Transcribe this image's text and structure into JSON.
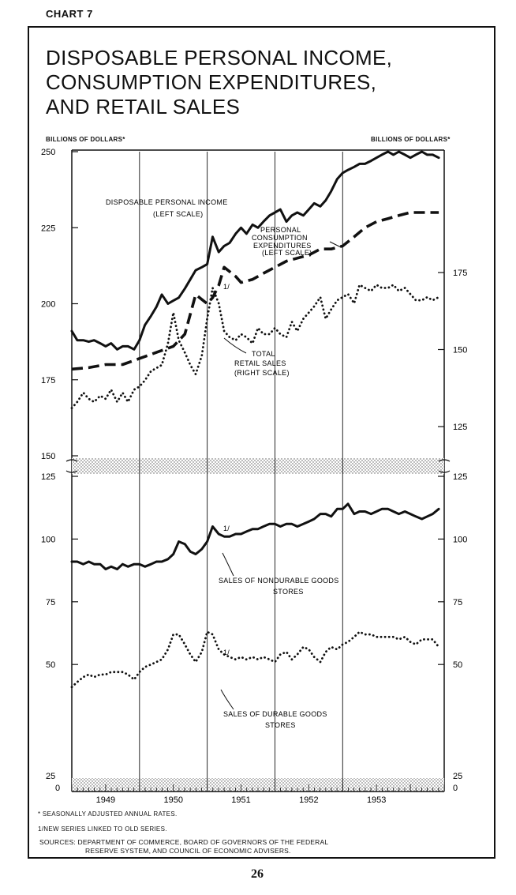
{
  "chart_label": "CHART 7",
  "title_lines": [
    "DISPOSABLE PERSONAL INCOME,",
    "CONSUMPTION EXPENDITURES,",
    "AND RETAIL SALES"
  ],
  "footnotes": {
    "star": "* SEASONALLY ADJUSTED ANNUAL RATES.",
    "one": "1/NEW SERIES LINKED TO OLD SERIES.",
    "sources_line1": "SOURCES: DEPARTMENT OF COMMERCE, BOARD OF GOVERNORS OF THE FEDERAL",
    "sources_line2": "RESERVE SYSTEM, AND COUNCIL OF ECONOMIC ADVISERS."
  },
  "page_number": "26",
  "chart_data": [
    {
      "type": "line",
      "panel": "upper",
      "ylabel_left": "BILLIONS OF DOLLARS*",
      "ylabel_right": "BILLIONS OF DOLLARS*",
      "left_ticks": [
        "150",
        "175",
        "200",
        "225",
        "250"
      ],
      "right_ticks": [
        "125",
        "150",
        "175"
      ],
      "ylim_left": [
        150,
        250
      ],
      "ylim_right": [
        115,
        190
      ],
      "x_range": [
        1948.5,
        1954.0
      ],
      "vertical_lines": [
        1949.5,
        1950.5,
        1951.5,
        1952.5
      ],
      "series": [
        {
          "name": "DISPOSABLE PERSONAL INCOME",
          "label": "DISPOSABLE PERSONAL INCOME",
          "scale_note": "(LEFT SCALE)",
          "style": "solid",
          "axis": "left",
          "x": [
            1948.5,
            1948.58,
            1948.67,
            1948.75,
            1948.83,
            1948.92,
            1949.0,
            1949.08,
            1949.17,
            1949.25,
            1949.33,
            1949.42,
            1949.5,
            1949.58,
            1949.67,
            1949.75,
            1949.83,
            1949.92,
            1950.0,
            1950.08,
            1950.17,
            1950.25,
            1950.33,
            1950.42,
            1950.5,
            1950.58,
            1950.67,
            1950.75,
            1950.83,
            1950.92,
            1951.0,
            1951.08,
            1951.17,
            1951.25,
            1951.33,
            1951.42,
            1951.5,
            1951.58,
            1951.67,
            1951.75,
            1951.83,
            1951.92,
            1952.0,
            1952.08,
            1952.17,
            1952.25,
            1952.33,
            1952.42,
            1952.5,
            1952.58,
            1952.67,
            1952.75,
            1952.83,
            1952.92,
            1953.0,
            1953.08,
            1953.17,
            1953.25,
            1953.33,
            1953.42,
            1953.5,
            1953.58,
            1953.67,
            1953.75,
            1953.83,
            1953.92
          ],
          "values": [
            191,
            188,
            188,
            187.5,
            188,
            187,
            186,
            187,
            185,
            186,
            186,
            185,
            188,
            193,
            196,
            199,
            203,
            200,
            201,
            202,
            205,
            208,
            211,
            212,
            213,
            222,
            217,
            219,
            220,
            223,
            225,
            223,
            226,
            225,
            227,
            229,
            230,
            231,
            227,
            229,
            230,
            229,
            231,
            233,
            232,
            234,
            237,
            241,
            243,
            244,
            245,
            246,
            246,
            247,
            248,
            249,
            250,
            249,
            250,
            249,
            248,
            249,
            250,
            249,
            249,
            248
          ]
        },
        {
          "name": "PERSONAL CONSUMPTION EXPENDITURES",
          "label": "PERSONAL CONSUMPTION EXPENDITURES",
          "scale_note": "(LEFT SCALE)",
          "style": "dashed",
          "axis": "left",
          "x": [
            1948.5,
            1948.75,
            1949.0,
            1949.25,
            1949.5,
            1949.75,
            1950.0,
            1950.17,
            1950.33,
            1950.5,
            1950.58,
            1950.67,
            1950.75,
            1950.92,
            1951.0,
            1951.17,
            1951.33,
            1951.5,
            1951.67,
            1951.83,
            1952.0,
            1952.17,
            1952.33,
            1952.5,
            1952.67,
            1952.83,
            1953.0,
            1953.17,
            1953.33,
            1953.5,
            1953.67,
            1953.83,
            1953.92
          ],
          "values": [
            178.5,
            179,
            180,
            180,
            182,
            184,
            186,
            190,
            203,
            200,
            202,
            206,
            212,
            209,
            207,
            208,
            210,
            212,
            214,
            215,
            216,
            218,
            218,
            219,
            222,
            225,
            227,
            228,
            229,
            230,
            230,
            230,
            230
          ]
        },
        {
          "name": "TOTAL RETAIL SALES",
          "label": "TOTAL RETAIL SALES",
          "scale_note": "(RIGHT SCALE)",
          "style": "dotted",
          "axis": "right",
          "x": [
            1948.5,
            1948.58,
            1948.67,
            1948.75,
            1948.83,
            1948.92,
            1949.0,
            1949.08,
            1949.17,
            1949.25,
            1949.33,
            1949.42,
            1949.5,
            1949.58,
            1949.67,
            1949.75,
            1949.83,
            1949.92,
            1950.0,
            1950.08,
            1950.17,
            1950.25,
            1950.33,
            1950.42,
            1950.5,
            1950.58,
            1950.67,
            1950.75,
            1950.83,
            1950.92,
            1951.0,
            1951.08,
            1951.17,
            1951.25,
            1951.33,
            1951.42,
            1951.5,
            1951.58,
            1951.67,
            1951.75,
            1951.83,
            1951.92,
            1952.0,
            1952.08,
            1952.17,
            1952.25,
            1952.33,
            1952.42,
            1952.5,
            1952.58,
            1952.67,
            1952.75,
            1952.83,
            1952.92,
            1953.0,
            1953.08,
            1953.17,
            1953.25,
            1953.33,
            1953.42,
            1953.5,
            1953.58,
            1953.67,
            1953.75,
            1953.83,
            1953.92
          ],
          "values": [
            131,
            133,
            136,
            134,
            133,
            135,
            134,
            137,
            133,
            136,
            133,
            137,
            138,
            140,
            143,
            144,
            145,
            152,
            162,
            153,
            149,
            145,
            142,
            148,
            160,
            170,
            165,
            156,
            154,
            153,
            155,
            154,
            152,
            157,
            155,
            155,
            157,
            155,
            154,
            159,
            156,
            160,
            162,
            164,
            167,
            160,
            163,
            166,
            167,
            168,
            165,
            171,
            170,
            169,
            171,
            170,
            170,
            171,
            169,
            170,
            168,
            166,
            166,
            167,
            166,
            167
          ]
        }
      ],
      "annotation_note": "1/"
    },
    {
      "type": "line",
      "panel": "lower",
      "left_ticks": [
        "0",
        "25",
        "50",
        "75",
        "100",
        "125"
      ],
      "right_ticks": [
        "0",
        "25",
        "50",
        "75",
        "100",
        "125"
      ],
      "ylim": [
        0,
        125
      ],
      "x_range": [
        1948.5,
        1954.0
      ],
      "x_tick_labels": [
        "1949",
        "1950",
        "1951",
        "1952",
        "1953"
      ],
      "x_tick_positions": [
        1949,
        1950,
        1951,
        1952,
        1953
      ],
      "vertical_lines": [
        1949.5,
        1950.5,
        1951.5,
        1952.5
      ],
      "series": [
        {
          "name": "SALES OF NONDURABLE GOODS STORES",
          "label_line1": "SALES OF NONDURABLE GOODS",
          "label_line2": "STORES",
          "style": "solid",
          "x": [
            1948.5,
            1948.58,
            1948.67,
            1948.75,
            1948.83,
            1948.92,
            1949.0,
            1949.08,
            1949.17,
            1949.25,
            1949.33,
            1949.42,
            1949.5,
            1949.58,
            1949.67,
            1949.75,
            1949.83,
            1949.92,
            1950.0,
            1950.08,
            1950.17,
            1950.25,
            1950.33,
            1950.42,
            1950.5,
            1950.58,
            1950.67,
            1950.75,
            1950.83,
            1950.92,
            1951.0,
            1951.08,
            1951.17,
            1951.25,
            1951.33,
            1951.42,
            1951.5,
            1951.58,
            1951.67,
            1951.75,
            1951.83,
            1951.92,
            1952.0,
            1952.08,
            1952.17,
            1952.25,
            1952.33,
            1952.42,
            1952.5,
            1952.58,
            1952.67,
            1952.75,
            1952.83,
            1952.92,
            1953.0,
            1953.08,
            1953.17,
            1953.25,
            1953.33,
            1953.42,
            1953.5,
            1953.58,
            1953.67,
            1953.75,
            1953.83,
            1953.92
          ],
          "values": [
            91,
            91,
            90,
            91,
            90,
            90,
            88,
            89,
            88,
            90,
            89,
            90,
            90,
            89,
            90,
            91,
            91,
            92,
            94,
            99,
            98,
            95,
            94,
            96,
            99,
            105,
            102,
            101,
            101,
            102,
            102,
            103,
            104,
            104,
            105,
            106,
            106,
            105,
            106,
            106,
            105,
            106,
            107,
            108,
            110,
            110,
            109,
            112,
            112,
            114,
            110,
            111,
            111,
            110,
            111,
            112,
            112,
            111,
            110,
            111,
            110,
            109,
            108,
            109,
            110,
            112
          ]
        },
        {
          "name": "SALES OF DURABLE GOODS STORES",
          "label_line1": "SALES OF DURABLE GOODS",
          "label_line2": "STORES",
          "style": "dotted",
          "x": [
            1948.5,
            1948.58,
            1948.67,
            1948.75,
            1948.83,
            1948.92,
            1949.0,
            1949.08,
            1949.17,
            1949.25,
            1949.33,
            1949.42,
            1949.5,
            1949.58,
            1949.67,
            1949.75,
            1949.83,
            1949.92,
            1950.0,
            1950.08,
            1950.17,
            1950.25,
            1950.33,
            1950.42,
            1950.5,
            1950.58,
            1950.67,
            1950.75,
            1950.83,
            1950.92,
            1951.0,
            1951.08,
            1951.17,
            1951.25,
            1951.33,
            1951.42,
            1951.5,
            1951.58,
            1951.67,
            1951.75,
            1951.83,
            1951.92,
            1952.0,
            1952.08,
            1952.17,
            1952.25,
            1952.33,
            1952.42,
            1952.5,
            1952.58,
            1952.67,
            1952.75,
            1952.83,
            1952.92,
            1953.0,
            1953.08,
            1953.17,
            1953.25,
            1953.33,
            1953.42,
            1953.5,
            1953.58,
            1953.67,
            1953.75,
            1953.83,
            1953.92
          ],
          "values": [
            41,
            43,
            45,
            46,
            45,
            46,
            46,
            47,
            47,
            47,
            46,
            44,
            47,
            49,
            50,
            51,
            52,
            56,
            62,
            62,
            58,
            54,
            51,
            55,
            63,
            62,
            56,
            54,
            53,
            52,
            53,
            52,
            53,
            52,
            53,
            52,
            51,
            54,
            55,
            52,
            54,
            57,
            56,
            53,
            51,
            55,
            57,
            56,
            58,
            59,
            61,
            63,
            62,
            62,
            61,
            61,
            61,
            61,
            60,
            61,
            59,
            58,
            60,
            60,
            60,
            57
          ]
        }
      ],
      "annotation_note": "1/"
    }
  ]
}
